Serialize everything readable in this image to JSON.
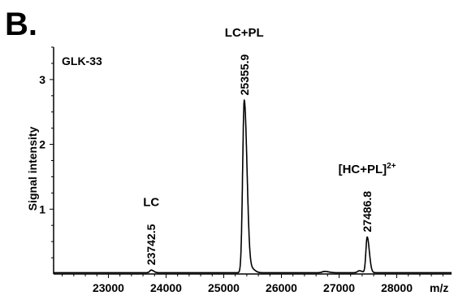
{
  "panel_label": "B.",
  "chart_data": {
    "type": "line",
    "sample_label": "GLK-33",
    "ylabel": "Signal intensity",
    "xlabel": "m/z",
    "xlim": [
      22050,
      28950
    ],
    "ylim": [
      0,
      3.5
    ],
    "x_ticks": [
      23000,
      24000,
      25000,
      26000,
      27000,
      28000
    ],
    "y_ticks": [
      1,
      2,
      3
    ],
    "baseline": 0.02,
    "peaks": [
      {
        "x": 23742.5,
        "height": 0.04,
        "width": 25,
        "value_label": "23742.5",
        "name_label": "LC"
      },
      {
        "x": 25355.9,
        "height": 2.66,
        "width": 28,
        "value_label": "25355.9",
        "name_label": "LC+PL"
      },
      {
        "x": 25500,
        "height": 0.05,
        "width": 30
      },
      {
        "x": 26750,
        "height": 0.02,
        "width": 40
      },
      {
        "x": 27350,
        "height": 0.03,
        "width": 30
      },
      {
        "x": 27486.8,
        "height": 0.55,
        "width": 22,
        "value_label": "27486.8",
        "name_label": "[HC+PL]",
        "name_sup": "2+"
      }
    ]
  }
}
